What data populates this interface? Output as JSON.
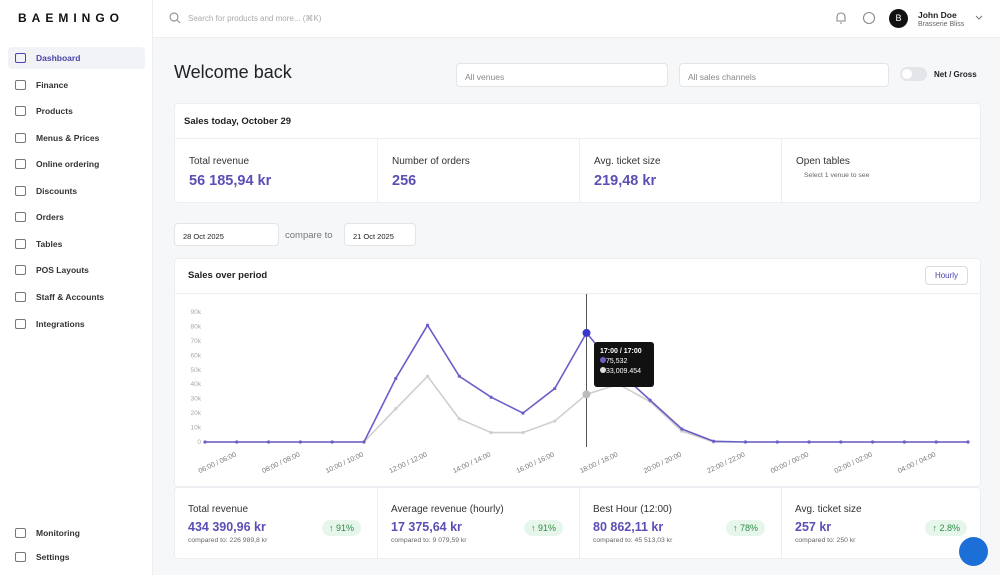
{
  "brand": "BAEMINGO",
  "search_placeholder": "Search for products and more... (⌘K)",
  "user": {
    "initial": "B",
    "name": "John Doe",
    "company": "Brasserie Bliss"
  },
  "nav": [
    "Dashboard",
    "Finance",
    "Products",
    "Menus & Prices",
    "Online ordering",
    "Discounts",
    "Orders",
    "Tables",
    "POS Layouts",
    "Staff & Accounts",
    "Integrations"
  ],
  "nav_bottom": [
    "Monitoring",
    "Settings"
  ],
  "header": {
    "title": "Welcome back",
    "venue_select": "All venues",
    "channel_select": "All sales channels",
    "toggle_label": "Net / Gross"
  },
  "today": {
    "title": "Sales today, October 29",
    "cells": [
      {
        "label": "Total revenue",
        "value": "56 185,94 kr"
      },
      {
        "label": "Number of orders",
        "value": "256"
      },
      {
        "label": "Avg. ticket size",
        "value": "219,48 kr"
      },
      {
        "label": "Open tables",
        "note": "Select 1 venue to see"
      }
    ]
  },
  "dates": {
    "from": "28 Oct 2025",
    "compare": "compare to",
    "to": "21 Oct 2025"
  },
  "period": {
    "title": "Sales over period",
    "button": "Hourly",
    "tooltip": {
      "title": "17:00 / 17:00",
      "current": "75,532",
      "compare": "33,009.454"
    },
    "chart_data": {
      "type": "line",
      "categories": [
        null,
        "06:00 / 06:00",
        null,
        "08:00 / 08:00",
        null,
        "10:00 / 10:00",
        null,
        "12:00 / 12:00",
        null,
        "14:00 / 14:00",
        null,
        "16:00 / 16:00",
        null,
        "18:00 / 18:00",
        null,
        "20:00 / 20:00",
        null,
        "22:00 / 22:00",
        null,
        "00:00 / 00:00",
        null,
        "02:00 / 02:00",
        null,
        "04:00 / 04:00",
        null
      ],
      "series": [
        {
          "color": "#6a5fc8",
          "values": [
            0,
            0,
            0,
            0,
            0,
            0,
            44000,
            80862,
            45500,
            31000,
            20000,
            37000,
            75532,
            49000,
            29000,
            9000,
            500,
            0,
            0,
            0,
            0,
            0,
            0,
            0,
            0
          ]
        },
        {
          "color": "#cfcfcf",
          "values": [
            0,
            0,
            0,
            0,
            0,
            0,
            23000,
            45513,
            16000,
            6500,
            6500,
            14500,
            33009,
            40000,
            28000,
            7500,
            0,
            0,
            0,
            0,
            0,
            0,
            0,
            0,
            0
          ]
        }
      ],
      "ylim": [
        0,
        90000
      ],
      "yticks": [
        0,
        {
          "value": 10000,
          "label": "10k"
        },
        {
          "value": 20000,
          "label": "20k"
        },
        {
          "value": 30000,
          "label": "30k"
        },
        {
          "value": 40000,
          "label": "40k"
        },
        {
          "value": 50000,
          "label": "50k"
        },
        {
          "value": 60000,
          "label": "60k"
        },
        {
          "value": 70000,
          "label": "70k"
        },
        {
          "value": 80000,
          "label": "80k"
        },
        {
          "value": 90000,
          "label": "90k"
        }
      ]
    }
  },
  "kpis": [
    {
      "label": "Total revenue",
      "value": "434 390,96 kr",
      "change": "91%",
      "compared": "compared to: 226 989,8 kr"
    },
    {
      "label": "Average revenue (hourly)",
      "value": "17 375,64 kr",
      "change": "91%",
      "compared": "compared to: 9 079,59 kr"
    },
    {
      "label": "Best Hour (12:00)",
      "value": "80 862,11 kr",
      "change": "78%",
      "compared": "compared to: 45 513,03 kr"
    },
    {
      "label": "Avg. ticket size",
      "value": "257 kr",
      "change": "2.8%",
      "compared": "compared to: 250 kr"
    }
  ]
}
